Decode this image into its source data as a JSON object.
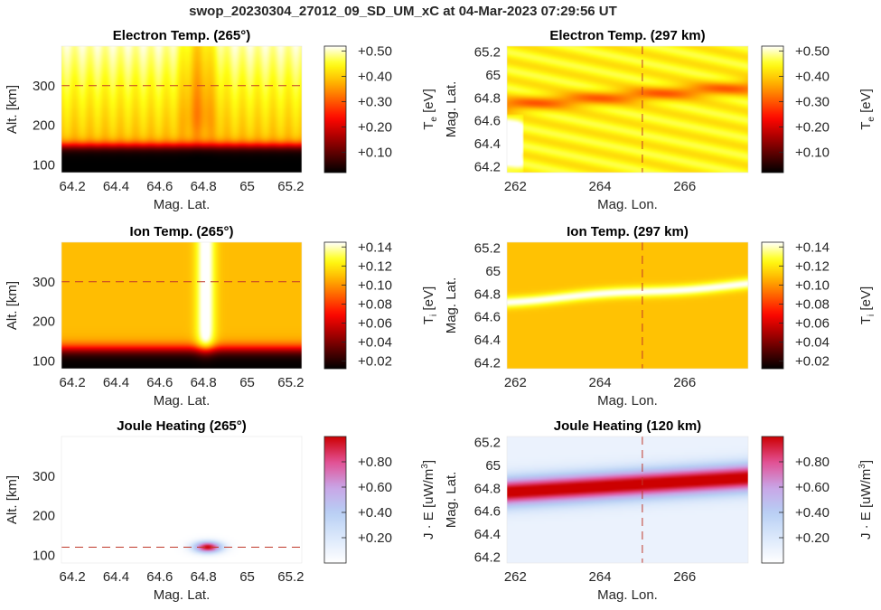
{
  "suptitle": "swop_20230304_27012_09_SD_UM_xC at 04-Mar-2023 07:29:56 UT",
  "colormaps": {
    "hot": [
      "#000000",
      "#560000",
      "#ad0000",
      "#ff0600",
      "#ff5e00",
      "#ffb500",
      "#ffff12",
      "#ffffff"
    ],
    "jet_heating": [
      "#ffffff",
      "#dbe8fb",
      "#b7cff4",
      "#c9a4e6",
      "#e24f93",
      "#cc0000"
    ]
  },
  "chart_data": [
    {
      "type": "heatmap",
      "title": "Electron Temp. (265°)",
      "xlabel": "Mag. Lat.",
      "ylabel": "Alt. [km]",
      "xlim": [
        64.15,
        65.25
      ],
      "ylim": [
        80,
        400
      ],
      "xticks": [
        "64.2",
        "64.4",
        "64.6",
        "64.8",
        "65",
        "65.2"
      ],
      "xtick_values": [
        64.2,
        64.4,
        64.6,
        64.8,
        65.0,
        65.2
      ],
      "yticks": [
        "100",
        "200",
        "300"
      ],
      "ytick_values": [
        100,
        200,
        300
      ],
      "reference_line": {
        "orientation": "horizontal",
        "value": 300
      },
      "colorbar": {
        "label": "T_e [eV]",
        "label_main": "T",
        "label_sub": "e",
        "label_unit": "[eV]",
        "range": [
          0.02,
          0.52
        ],
        "ticks": [
          "+0.10",
          "+0.20",
          "+0.30",
          "+0.40",
          "+0.50"
        ],
        "tick_values": [
          0.1,
          0.2,
          0.3,
          0.4,
          0.5
        ],
        "colormap": "hot"
      }
    },
    {
      "type": "heatmap",
      "title": "Electron Temp. (297 km)",
      "xlabel": "Mag. Lon.",
      "ylabel": "Mag. Lat.",
      "xlim": [
        261.8,
        267.5
      ],
      "ylim": [
        64.15,
        65.25
      ],
      "xticks": [
        "262",
        "264",
        "266"
      ],
      "xtick_values": [
        262,
        264,
        266
      ],
      "yticks": [
        "64.2",
        "64.4",
        "64.6",
        "64.8",
        "65",
        "65.2"
      ],
      "ytick_values": [
        64.2,
        64.4,
        64.6,
        64.8,
        65.0,
        65.2
      ],
      "reference_line": {
        "orientation": "vertical",
        "value": 265
      },
      "colorbar": {
        "label": "T_e [eV]",
        "label_main": "T",
        "label_sub": "e",
        "label_unit": "[eV]",
        "range": [
          0.02,
          0.52
        ],
        "ticks": [
          "+0.10",
          "+0.20",
          "+0.30",
          "+0.40",
          "+0.50"
        ],
        "tick_values": [
          0.1,
          0.2,
          0.3,
          0.4,
          0.5
        ],
        "colormap": "hot"
      }
    },
    {
      "type": "heatmap",
      "title": "Ion Temp. (265°)",
      "xlabel": "Mag. Lat.",
      "ylabel": "Alt. [km]",
      "xlim": [
        64.15,
        65.25
      ],
      "ylim": [
        80,
        400
      ],
      "xticks": [
        "64.2",
        "64.4",
        "64.6",
        "64.8",
        "65",
        "65.2"
      ],
      "xtick_values": [
        64.2,
        64.4,
        64.6,
        64.8,
        65.0,
        65.2
      ],
      "yticks": [
        "100",
        "200",
        "300"
      ],
      "ytick_values": [
        100,
        200,
        300
      ],
      "reference_line": {
        "orientation": "horizontal",
        "value": 300
      },
      "colorbar": {
        "label": "T_i [eV]",
        "label_main": "T",
        "label_sub": "i",
        "label_unit": "[eV]",
        "range": [
          0.012,
          0.145
        ],
        "ticks": [
          "+0.02",
          "+0.04",
          "+0.06",
          "+0.08",
          "+0.10",
          "+0.12",
          "+0.14"
        ],
        "tick_values": [
          0.02,
          0.04,
          0.06,
          0.08,
          0.1,
          0.12,
          0.14
        ],
        "colormap": "hot"
      }
    },
    {
      "type": "heatmap",
      "title": "Ion Temp. (297 km)",
      "xlabel": "Mag. Lon.",
      "ylabel": "Mag. Lat.",
      "xlim": [
        261.8,
        267.5
      ],
      "ylim": [
        64.15,
        65.25
      ],
      "xticks": [
        "262",
        "264",
        "266"
      ],
      "xtick_values": [
        262,
        264,
        266
      ],
      "yticks": [
        "64.2",
        "64.4",
        "64.6",
        "64.8",
        "65",
        "65.2"
      ],
      "ytick_values": [
        64.2,
        64.4,
        64.6,
        64.8,
        65.0,
        65.2
      ],
      "reference_line": {
        "orientation": "vertical",
        "value": 265
      },
      "colorbar": {
        "label": "T_i [eV]",
        "label_main": "T",
        "label_sub": "i",
        "label_unit": "[eV]",
        "range": [
          0.012,
          0.145
        ],
        "ticks": [
          "+0.02",
          "+0.04",
          "+0.06",
          "+0.08",
          "+0.10",
          "+0.12",
          "+0.14"
        ],
        "tick_values": [
          0.02,
          0.04,
          0.06,
          0.08,
          0.1,
          0.12,
          0.14
        ],
        "colormap": "hot"
      }
    },
    {
      "type": "heatmap",
      "title": "Joule Heating (265°)",
      "xlabel": "Mag. Lat.",
      "ylabel": "Alt. [km]",
      "xlim": [
        64.15,
        65.25
      ],
      "ylim": [
        80,
        400
      ],
      "xticks": [
        "64.2",
        "64.4",
        "64.6",
        "64.8",
        "65",
        "65.2"
      ],
      "xtick_values": [
        64.2,
        64.4,
        64.6,
        64.8,
        65.0,
        65.2
      ],
      "yticks": [
        "100",
        "200",
        "300"
      ],
      "ytick_values": [
        100,
        200,
        300
      ],
      "reference_line": {
        "orientation": "horizontal",
        "value": 120
      },
      "colorbar": {
        "label": "J · E [uW/m³]",
        "label_main": "J · E [uW/m",
        "label_sup": "3",
        "label_unit": "]",
        "range": [
          0.0,
          1.0
        ],
        "ticks": [
          "+0.20",
          "+0.40",
          "+0.60",
          "+0.80"
        ],
        "tick_values": [
          0.2,
          0.4,
          0.6,
          0.8
        ],
        "colormap": "jet_heating"
      }
    },
    {
      "type": "heatmap",
      "title": "Joule Heating (120 km)",
      "xlabel": "Mag. Lon.",
      "ylabel": "Mag. Lat.",
      "xlim": [
        261.8,
        267.5
      ],
      "ylim": [
        64.15,
        65.25
      ],
      "xticks": [
        "262",
        "264",
        "266"
      ],
      "xtick_values": [
        262,
        264,
        266
      ],
      "yticks": [
        "64.2",
        "64.4",
        "64.6",
        "64.8",
        "65",
        "65.2"
      ],
      "ytick_values": [
        64.2,
        64.4,
        64.6,
        64.8,
        65.0,
        65.2
      ],
      "reference_line": {
        "orientation": "vertical",
        "value": 265
      },
      "colorbar": {
        "label": "J · E [uW/m³]",
        "label_main": "J · E [uW/m",
        "label_sup": "3",
        "label_unit": "]",
        "range": [
          0.0,
          1.0
        ],
        "ticks": [
          "+0.20",
          "+0.40",
          "+0.60",
          "+0.80"
        ],
        "tick_values": [
          0.2,
          0.4,
          0.6,
          0.8
        ],
        "colormap": "jet_heating"
      }
    }
  ]
}
